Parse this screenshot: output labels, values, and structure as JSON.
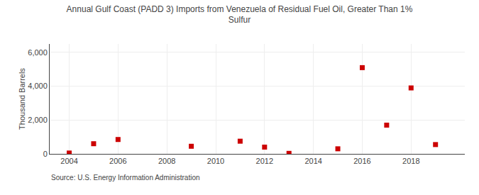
{
  "chart_data": {
    "type": "scatter",
    "title": "Annual Gulf Coast (PADD 3) Imports from Venezuela of Residual Fuel Oil, Greater Than 1%\nSulfur",
    "y_label": "Thousand Barrels",
    "source": "Source: U.S. Energy Information Administration",
    "x": [
      2004,
      2005,
      2006,
      2009,
      2011,
      2012,
      2013,
      2015,
      2016,
      2017,
      2018,
      2019
    ],
    "values": [
      50,
      600,
      850,
      450,
      750,
      400,
      30,
      300,
      5100,
      1700,
      3900,
      550
    ],
    "color": "#cc0000",
    "marker": "square",
    "xlim": [
      2003.2,
      2020.2
    ],
    "xticks": [
      2004,
      2006,
      2008,
      2010,
      2012,
      2014,
      2016,
      2018
    ],
    "ylim": [
      0,
      6500
    ],
    "yticks": [
      0,
      {
        "value": 2000,
        "label": "2,000"
      },
      {
        "value": 4000,
        "label": "4,000"
      },
      {
        "value": 6000,
        "label": "6,000"
      }
    ],
    "grid": true
  }
}
